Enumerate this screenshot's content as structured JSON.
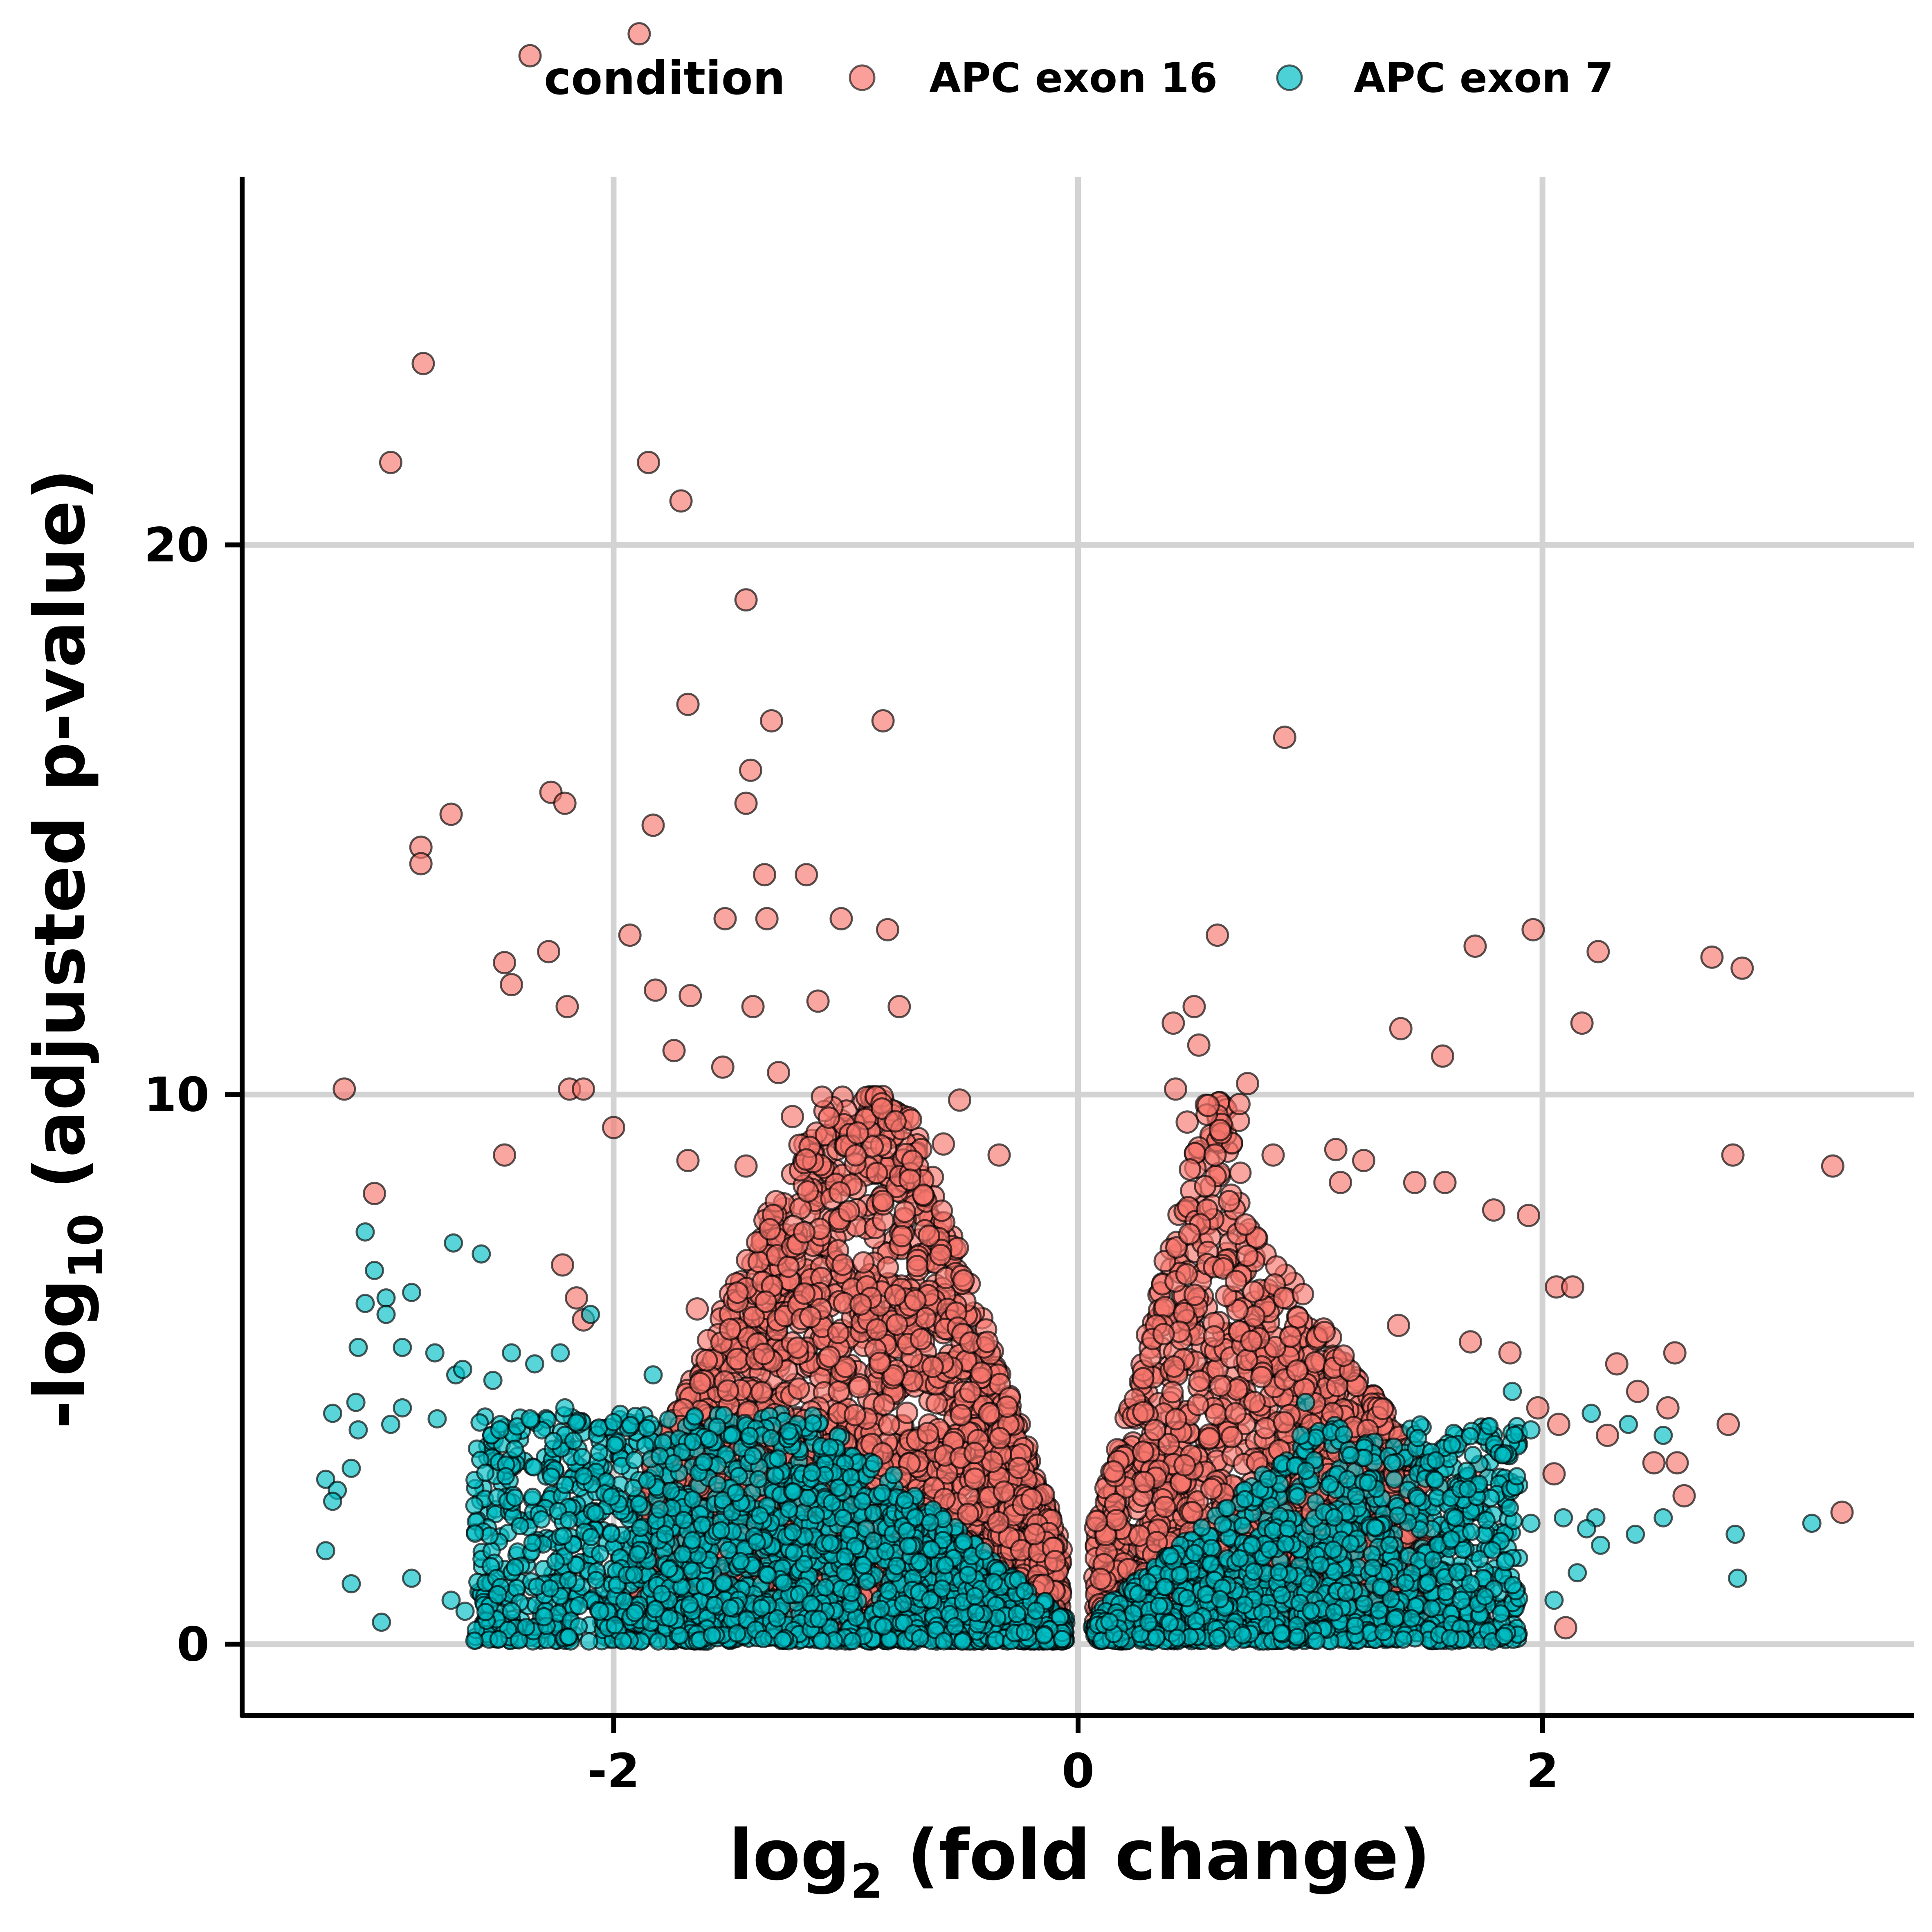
{
  "chart_data": {
    "type": "scatter",
    "title": "",
    "xlabel": {
      "base": "log",
      "sub": "2",
      "rest": " (fold change)"
    },
    "ylabel": {
      "base": "-log",
      "sub": "10",
      "rest": " (adjusted p-value)"
    },
    "xlim": [
      -3.6,
      3.6
    ],
    "ylim": [
      -1.3,
      26.7
    ],
    "xticks": [
      -2,
      0,
      2
    ],
    "xtick_labels": [
      "-2",
      "0",
      "2"
    ],
    "yticks": [
      0,
      10,
      20
    ],
    "ytick_labels": [
      "0",
      "10",
      "20"
    ],
    "grid": true,
    "legend": {
      "title": "condition",
      "position": "top"
    },
    "series": [
      {
        "name": "APC exon 16",
        "color": "#F8766D",
        "points": [
          [
            -1.89,
            29.3
          ],
          [
            -2.36,
            28.9
          ],
          [
            -2.82,
            23.3
          ],
          [
            -2.96,
            21.5
          ],
          [
            -1.85,
            21.5
          ],
          [
            -1.71,
            20.8
          ],
          [
            -1.43,
            19.0
          ],
          [
            -1.68,
            17.1
          ],
          [
            -1.32,
            16.8
          ],
          [
            -0.84,
            16.8
          ],
          [
            0.89,
            16.5
          ],
          [
            -1.41,
            15.9
          ],
          [
            -2.27,
            15.5
          ],
          [
            -2.21,
            15.3
          ],
          [
            -1.43,
            15.3
          ],
          [
            -2.7,
            15.1
          ],
          [
            -1.83,
            14.9
          ],
          [
            -2.83,
            14.5
          ],
          [
            -2.83,
            14.2
          ],
          [
            -1.35,
            14.0
          ],
          [
            -1.17,
            14.0
          ],
          [
            -1.52,
            13.2
          ],
          [
            -1.34,
            13.2
          ],
          [
            -1.02,
            13.2
          ],
          [
            -1.93,
            12.9
          ],
          [
            -0.82,
            13.0
          ],
          [
            0.6,
            12.9
          ],
          [
            1.96,
            13.0
          ],
          [
            1.71,
            12.7
          ],
          [
            2.24,
            12.6
          ],
          [
            2.73,
            12.5
          ],
          [
            2.86,
            12.3
          ],
          [
            -2.28,
            12.6
          ],
          [
            -2.47,
            12.4
          ],
          [
            -2.44,
            12.0
          ],
          [
            -2.2,
            11.6
          ],
          [
            -1.82,
            11.9
          ],
          [
            -1.67,
            11.8
          ],
          [
            -1.4,
            11.6
          ],
          [
            -1.12,
            11.7
          ],
          [
            -0.77,
            11.6
          ],
          [
            0.5,
            11.6
          ],
          [
            0.41,
            11.3
          ],
          [
            1.39,
            11.2
          ],
          [
            2.17,
            11.3
          ],
          [
            0.52,
            10.9
          ],
          [
            1.57,
            10.7
          ],
          [
            -1.74,
            10.8
          ],
          [
            -1.53,
            10.5
          ],
          [
            -3.16,
            10.1
          ],
          [
            -2.19,
            10.1
          ],
          [
            -2.13,
            10.1
          ],
          [
            -1.29,
            10.4
          ],
          [
            0.73,
            10.2
          ],
          [
            -2.0,
            9.4
          ],
          [
            -2.47,
            8.9
          ],
          [
            -1.23,
            9.6
          ],
          [
            -0.51,
            9.9
          ],
          [
            -0.95,
            9.3
          ],
          [
            0.56,
            9.8
          ],
          [
            0.42,
            10.1
          ],
          [
            0.47,
            9.5
          ],
          [
            -1.43,
            8.7
          ],
          [
            -1.68,
            8.8
          ],
          [
            -0.58,
            9.1
          ],
          [
            -0.34,
            8.9
          ],
          [
            0.59,
            8.9
          ],
          [
            0.84,
            8.9
          ],
          [
            1.11,
            9.0
          ],
          [
            1.23,
            8.8
          ],
          [
            2.82,
            8.9
          ],
          [
            3.25,
            8.7
          ],
          [
            -3.03,
            8.2
          ],
          [
            1.45,
            8.4
          ],
          [
            1.58,
            8.4
          ],
          [
            1.13,
            8.4
          ],
          [
            1.79,
            7.9
          ],
          [
            1.94,
            7.8
          ],
          [
            2.57,
            5.3
          ],
          [
            2.32,
            5.1
          ],
          [
            2.06,
            6.5
          ],
          [
            2.13,
            6.5
          ],
          [
            -2.22,
            6.9
          ],
          [
            -2.16,
            6.3
          ],
          [
            -2.13,
            5.9
          ],
          [
            -1.64,
            6.1
          ],
          [
            1.38,
            5.8
          ],
          [
            1.69,
            5.5
          ],
          [
            1.86,
            5.3
          ],
          [
            2.41,
            4.6
          ],
          [
            2.54,
            4.3
          ],
          [
            1.98,
            4.3
          ],
          [
            2.07,
            4.0
          ],
          [
            2.28,
            3.8
          ],
          [
            2.48,
            3.3
          ],
          [
            2.58,
            3.3
          ],
          [
            2.61,
            2.7
          ],
          [
            2.8,
            4.0
          ],
          [
            3.29,
            2.4
          ],
          [
            2.05,
            3.1
          ],
          [
            1.73,
            3.2
          ],
          [
            1.56,
            2.9
          ],
          [
            2.1,
            0.3
          ]
        ],
        "cloud_left": {
          "x": [
            -1.9,
            -0.07
          ],
          "y": [
            0.3,
            10.0
          ],
          "count": 2800
        },
        "cloud_right": {
          "x": [
            0.07,
            1.5
          ],
          "y": [
            0.3,
            10.0
          ],
          "count": 1600
        }
      },
      {
        "name": "APC exon 7",
        "color": "#00BFC4",
        "points": [
          [
            -3.07,
            7.5
          ],
          [
            -2.69,
            7.3
          ],
          [
            -2.57,
            7.1
          ],
          [
            -3.03,
            6.8
          ],
          [
            -2.87,
            6.4
          ],
          [
            -2.98,
            6.3
          ],
          [
            -3.07,
            6.2
          ],
          [
            -2.98,
            6.0
          ],
          [
            -2.1,
            6.0
          ],
          [
            -3.1,
            5.4
          ],
          [
            -2.91,
            5.4
          ],
          [
            -2.77,
            5.3
          ],
          [
            -2.44,
            5.3
          ],
          [
            -2.34,
            5.1
          ],
          [
            -2.23,
            5.3
          ],
          [
            -2.68,
            4.9
          ],
          [
            -2.65,
            5.0
          ],
          [
            -2.52,
            4.8
          ],
          [
            -1.83,
            4.9
          ],
          [
            -2.91,
            4.3
          ],
          [
            -3.11,
            4.4
          ],
          [
            -2.96,
            4.0
          ],
          [
            -2.76,
            4.1
          ],
          [
            -2.49,
            3.9
          ],
          [
            -2.36,
            4.1
          ],
          [
            -2.21,
            4.3
          ],
          [
            -3.1,
            3.9
          ],
          [
            -3.21,
            4.2
          ],
          [
            -3.13,
            3.2
          ],
          [
            -3.24,
            3.0
          ],
          [
            -3.19,
            2.8
          ],
          [
            -3.21,
            2.6
          ],
          [
            -3.24,
            1.7
          ],
          [
            -3.13,
            1.1
          ],
          [
            -3.0,
            0.4
          ],
          [
            -2.87,
            1.2
          ],
          [
            -2.7,
            0.8
          ],
          [
            -2.64,
            0.6
          ],
          [
            -2.5,
            0.9
          ],
          [
            -2.44,
            0.6
          ],
          [
            -2.3,
            0.5
          ],
          [
            -2.15,
            0.7
          ],
          [
            -2.06,
            0.6
          ],
          [
            1.95,
            2.2
          ],
          [
            2.09,
            2.3
          ],
          [
            2.23,
            2.3
          ],
          [
            2.19,
            2.1
          ],
          [
            2.25,
            1.8
          ],
          [
            2.4,
            2.0
          ],
          [
            2.52,
            2.3
          ],
          [
            2.83,
            2.0
          ],
          [
            3.16,
            2.2
          ],
          [
            2.84,
            1.2
          ],
          [
            2.15,
            1.3
          ],
          [
            2.05,
            0.8
          ],
          [
            1.84,
            1.5
          ],
          [
            1.69,
            1.1
          ],
          [
            1.65,
            0.8
          ],
          [
            1.95,
            3.9
          ],
          [
            2.21,
            4.2
          ],
          [
            2.37,
            4.0
          ],
          [
            2.52,
            3.8
          ],
          [
            1.87,
            4.6
          ],
          [
            0.98,
            4.4
          ],
          [
            0.96,
            3.8
          ]
        ],
        "cloud_left": {
          "x": [
            -2.6,
            -0.05
          ],
          "y": [
            0.05,
            4.2
          ],
          "count": 2200
        },
        "cloud_right": {
          "x": [
            0.05,
            1.9
          ],
          "y": [
            0.05,
            4.0
          ],
          "count": 1400
        }
      }
    ]
  }
}
